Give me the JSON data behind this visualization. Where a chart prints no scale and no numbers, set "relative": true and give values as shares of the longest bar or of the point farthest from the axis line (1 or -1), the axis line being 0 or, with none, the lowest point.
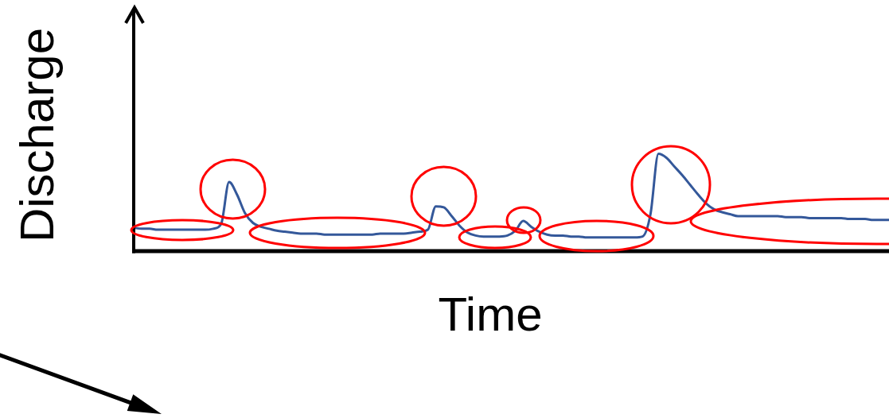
{
  "chart_data": {
    "type": "line",
    "xlabel": "Time",
    "ylabel": "Discharge",
    "relative": true,
    "categories": [
      null,
      null,
      null,
      null,
      null,
      null,
      null,
      null,
      null,
      null,
      null,
      null,
      null,
      null,
      null,
      null,
      null,
      null,
      null,
      null,
      null,
      null,
      null,
      null,
      null,
      null,
      null,
      null,
      null,
      null,
      null,
      null,
      null,
      null,
      null,
      null,
      null,
      null,
      null,
      null,
      null,
      null,
      null,
      null,
      null,
      null,
      null,
      null,
      null,
      null,
      null,
      null,
      null,
      null,
      null,
      null,
      null,
      null,
      null,
      null,
      null,
      null,
      null,
      null,
      null,
      null,
      null,
      null,
      null,
      null,
      null,
      null,
      null,
      null,
      null,
      null,
      null,
      null,
      null,
      null,
      null,
      null,
      null,
      null,
      null,
      null,
      null,
      null,
      null,
      null,
      null,
      null,
      null,
      null,
      null,
      null
    ],
    "series": [
      {
        "color": "#34589a",
        "values": [
          0.24,
          0.23,
          0.23,
          0.22,
          0.22,
          0.22,
          0.22,
          0.22,
          0.22,
          0.22,
          0.23,
          0.28,
          0.71,
          0.58,
          0.39,
          0.29,
          0.25,
          0.23,
          0.21,
          0.2,
          0.19,
          0.18,
          0.18,
          0.18,
          0.17,
          0.17,
          0.17,
          0.17,
          0.17,
          0.17,
          0.17,
          0.18,
          0.18,
          0.18,
          0.18,
          0.19,
          0.2,
          0.22,
          0.46,
          0.45,
          0.36,
          0.26,
          0.19,
          0.16,
          0.15,
          0.15,
          0.15,
          0.16,
          0.21,
          0.31,
          0.25,
          0.2,
          0.17,
          0.16,
          0.16,
          0.15,
          0.15,
          0.14,
          0.14,
          0.14,
          0.14,
          0.14,
          0.14,
          0.14,
          0.15,
          0.38,
          1.0,
          0.96,
          0.87,
          0.78,
          0.68,
          0.58,
          0.49,
          0.43,
          0.4,
          0.38,
          0.36,
          0.36,
          0.36,
          0.36,
          0.36,
          0.36,
          0.35,
          0.35,
          0.35,
          0.34,
          0.34,
          0.34,
          0.34,
          0.34,
          0.33,
          0.33,
          0.33,
          0.32,
          0.32,
          0.32
        ]
      }
    ]
  }
}
